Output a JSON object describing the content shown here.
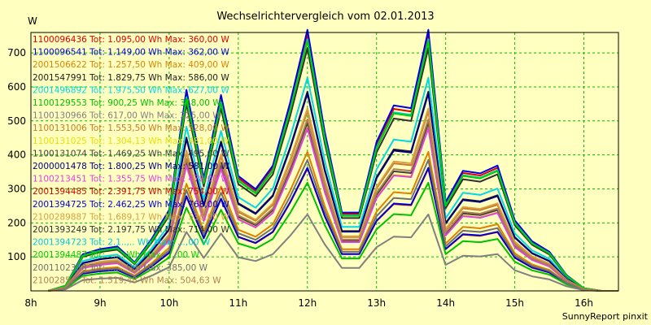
{
  "chart_data": {
    "type": "line",
    "title": "Wechselrichtervergleich vom 02.01.2013",
    "ylabel": "W",
    "footer": "SunnyReport pinxit",
    "xlim": [
      8,
      16.5
    ],
    "ylim": [
      0,
      760
    ],
    "x_ticks": [
      {
        "value": 8,
        "label": "8h"
      },
      {
        "value": 9,
        "label": "9h"
      },
      {
        "value": 10,
        "label": "10h"
      },
      {
        "value": 11,
        "label": "11h"
      },
      {
        "value": 12,
        "label": "12h"
      },
      {
        "value": 13,
        "label": "13h"
      },
      {
        "value": 14,
        "label": "14h"
      },
      {
        "value": 15,
        "label": "15h"
      },
      {
        "value": 16,
        "label": "16h"
      }
    ],
    "y_ticks": [
      100,
      200,
      300,
      400,
      500,
      600,
      700
    ],
    "grid": true,
    "x": [
      8.25,
      8.5,
      8.75,
      9.0,
      9.25,
      9.5,
      9.75,
      10.0,
      10.25,
      10.5,
      10.75,
      11.0,
      11.25,
      11.5,
      11.75,
      12.0,
      12.25,
      12.5,
      12.75,
      13.0,
      13.25,
      13.5,
      13.75,
      14.0,
      14.25,
      14.5,
      14.75,
      15.0,
      15.25,
      15.5,
      15.75,
      16.0,
      16.25,
      16.5
    ],
    "series": [
      {
        "name": "1100096436",
        "legend": "1100096436 Tot: 1.095,00 Wh Max: 360,00 W",
        "color": "#e00000",
        "peak": 360
      },
      {
        "name": "1100096541",
        "legend": "1100096541 Tot: 1.149,00 Wh Max: 362,00 W",
        "color": "#0000d0",
        "peak": 362
      },
      {
        "name": "2001506622",
        "legend": "2001506622 Tot: 1.257,50 Wh Max: 409,00 W",
        "color": "#e08000",
        "peak": 409
      },
      {
        "name": "2001547991",
        "legend": "2001547991 Tot: 1.829,75 Wh Max: 586,00 W",
        "color": "#202020",
        "peak": 586
      },
      {
        "name": "2001496892",
        "legend": "2001496892 Tot: 1.975,50 Wh Max: 627,00 W",
        "color": "#00d8e8",
        "peak": 627
      },
      {
        "name": "1100129553",
        "legend": "1100129553 Tot: 900,25 Wh Max: 318,00 W",
        "color": "#00c000",
        "peak": 318
      },
      {
        "name": "1100130966",
        "legend": "1100130966 Tot: 617,00 Wh Max: 225,00 W",
        "color": "#808080",
        "peak": 225
      },
      {
        "name": "1100131006",
        "legend": "1100131006 Tot: 1.553,50 Wh Max: 528,00 W",
        "color": "#c87828",
        "peak": 528
      },
      {
        "name": "1100131025",
        "legend": "1100131025 Tot: 1.304,13 Wh Max: 481,00 W",
        "color": "#e8e000",
        "peak": 481
      },
      {
        "name": "1100131074",
        "legend": "1100131074 Tot: 1.469,25 Wh Max: 495,00 W",
        "color": "#404040",
        "peak": 495
      },
      {
        "name": "2000001478",
        "legend": "2000001478 Tot: 1.800,25 Wh Max: 581,00 W",
        "color": "#000080",
        "peak": 581
      },
      {
        "name": "1100213451",
        "legend": "1100213451 Tot: 1.355,75 Wh Max: 478,00 W",
        "color": "#e040e0",
        "peak": 478
      },
      {
        "name": "2001394485",
        "legend": "2001394485 Tot: 2.391,75 Wh Max: 754,00 W",
        "color": "#e00000",
        "peak": 754
      },
      {
        "name": "2001394725",
        "legend": "2001394725 Tot: 2.462,25 Wh Max: 768,00 W",
        "color": "#0000e0",
        "peak": 768
      },
      {
        "name": "2100289887",
        "legend": "2100289887 Tot: 1.689,17 Wh Max: 536,00 W",
        "color": "#d8a040",
        "peak": 536
      },
      {
        "name": "2001393249",
        "legend": "2001393249 Tot: 2.197,75 Wh Max: 714,00 W",
        "color": "#303030",
        "peak": 714
      },
      {
        "name": "2001394723",
        "legend": "2001394723 Tot: 2.1..,.. Wh Max: ...,00 W",
        "color": "#00c8e0",
        "peak": 740
      },
      {
        "name": "2001394487",
        "legend": "2001394487 Tot: ...... Wh Max: ...,00 W",
        "color": "#00d000",
        "peak": 735
      },
      {
        "name": "2001102358",
        "legend": "2001102358 Tot: ...... Wh Max: 385,00 W",
        "color": "#707070",
        "peak": 385
      },
      {
        "name": "2100285...",
        "legend": "2100285... Tot: 1.519,48 Wh Max: 504,63 W",
        "color": "#b08050",
        "peak": 504.63
      }
    ],
    "profile": [
      0.0,
      0.02,
      0.14,
      0.16,
      0.17,
      0.11,
      0.2,
      0.31,
      0.77,
      0.43,
      0.75,
      0.44,
      0.39,
      0.48,
      0.72,
      1.0,
      0.61,
      0.3,
      0.3,
      0.57,
      0.71,
      0.7,
      1.0,
      0.34,
      0.46,
      0.45,
      0.48,
      0.27,
      0.19,
      0.15,
      0.06,
      0.01,
      0.0,
      0.0
    ]
  }
}
